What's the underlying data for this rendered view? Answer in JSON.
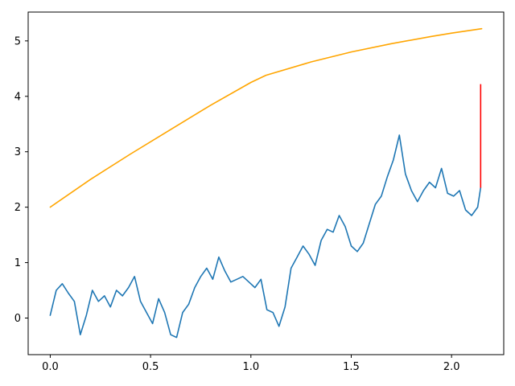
{
  "chart_data": {
    "type": "line",
    "title": "",
    "xlabel": "",
    "ylabel": "",
    "xlim": [
      -0.11,
      2.26
    ],
    "ylim": [
      -0.66,
      5.52
    ],
    "xticks": [
      0.0,
      0.5,
      1.0,
      1.5,
      2.0
    ],
    "xtick_labels": [
      "0.0",
      "0.5",
      "1.0",
      "1.5",
      "2.0"
    ],
    "yticks": [
      0,
      1,
      2,
      3,
      4,
      5
    ],
    "ytick_labels": [
      "0",
      "1",
      "2",
      "3",
      "4",
      "5"
    ],
    "grid": false,
    "legend": "none",
    "series": [
      {
        "color": "#1f77b4",
        "x": [
          0.0,
          0.03,
          0.06,
          0.09,
          0.12,
          0.15,
          0.18,
          0.21,
          0.24,
          0.27,
          0.3,
          0.33,
          0.36,
          0.39,
          0.42,
          0.45,
          0.48,
          0.51,
          0.54,
          0.57,
          0.6,
          0.63,
          0.66,
          0.69,
          0.72,
          0.75,
          0.78,
          0.81,
          0.84,
          0.87,
          0.9,
          0.93,
          0.96,
          0.99,
          1.02,
          1.05,
          1.08,
          1.11,
          1.14,
          1.17,
          1.2,
          1.23,
          1.26,
          1.29,
          1.32,
          1.35,
          1.38,
          1.41,
          1.44,
          1.47,
          1.5,
          1.53,
          1.56,
          1.59,
          1.62,
          1.65,
          1.68,
          1.71,
          1.74,
          1.77,
          1.8,
          1.83,
          1.86,
          1.89,
          1.92,
          1.95,
          1.98,
          2.01,
          2.04,
          2.07,
          2.1,
          2.13,
          2.145
        ],
        "y": [
          0.05,
          0.5,
          0.62,
          0.45,
          0.3,
          -0.3,
          0.05,
          0.5,
          0.3,
          0.4,
          0.2,
          0.5,
          0.4,
          0.55,
          0.75,
          0.3,
          0.1,
          -0.1,
          0.35,
          0.1,
          -0.3,
          -0.35,
          0.1,
          0.25,
          0.55,
          0.75,
          0.9,
          0.7,
          1.1,
          0.85,
          0.65,
          0.7,
          0.75,
          0.65,
          0.55,
          0.7,
          0.15,
          0.1,
          -0.15,
          0.2,
          0.9,
          1.1,
          1.3,
          1.15,
          0.95,
          1.4,
          1.6,
          1.55,
          1.85,
          1.65,
          1.3,
          1.2,
          1.35,
          1.7,
          2.05,
          2.2,
          2.55,
          2.85,
          3.3,
          2.6,
          2.3,
          2.1,
          2.3,
          2.45,
          2.35,
          2.7,
          2.25,
          2.2,
          2.3,
          1.95,
          1.85,
          2.0,
          2.35
        ]
      },
      {
        "color": "#ffa500",
        "x": [
          0.0,
          0.2,
          0.4,
          0.6,
          0.8,
          1.0,
          1.075,
          1.3,
          1.5,
          1.7,
          1.9,
          2.0,
          2.15
        ],
        "y": [
          2.0,
          2.5,
          2.96,
          3.4,
          3.84,
          4.25,
          4.38,
          4.62,
          4.8,
          4.95,
          5.08,
          5.14,
          5.22
        ]
      }
    ],
    "vline": {
      "color": "#ff0000",
      "x": 2.145,
      "y0": 2.35,
      "y1": 4.22
    }
  }
}
